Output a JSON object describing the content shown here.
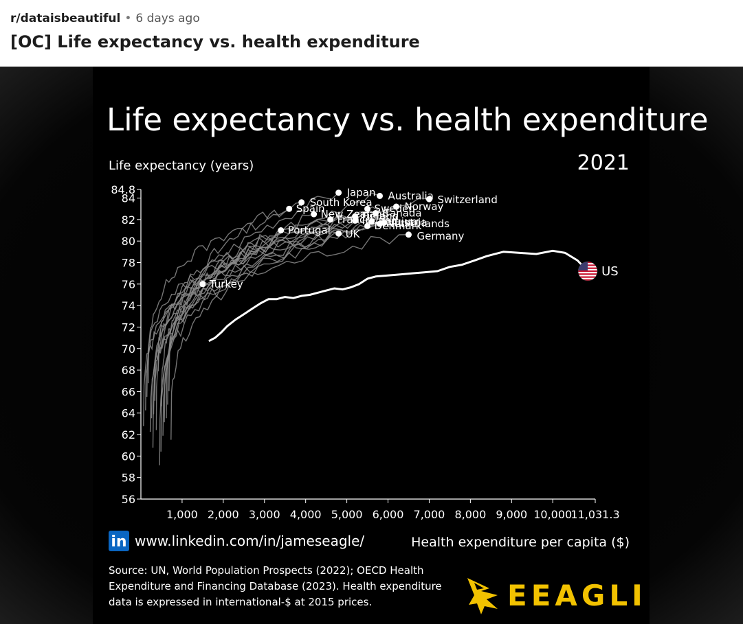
{
  "post": {
    "subreddit": "r/dataisbeautiful",
    "separator": "•",
    "time_ago": "6 days ago",
    "title": "[OC] Life expectancy vs. health expenditure"
  },
  "chart_data": {
    "type": "line",
    "title": "Life expectancy vs. health expenditure",
    "year": "2021",
    "ylabel": "Life expectancy (years)",
    "xlabel": "Health expenditure per capita ($)",
    "xlim": [
      0,
      11031.3
    ],
    "ylim": [
      56,
      84.8
    ],
    "x_ticks": [
      "1,000",
      "2,000",
      "3,000",
      "4,000",
      "5,000",
      "6,000",
      "7,000",
      "8,000",
      "9,000",
      "10,000",
      "11,031.3"
    ],
    "y_ticks": [
      "56",
      "58",
      "60",
      "62",
      "64",
      "66",
      "68",
      "70",
      "72",
      "74",
      "76",
      "78",
      "80",
      "82",
      "84",
      "84.8"
    ],
    "grid": false,
    "colors": {
      "background": "#000000",
      "highlight": "#ffffff",
      "others": "#8a8a8a",
      "logo": "#f2c200",
      "linkedin": "#0a66c2"
    },
    "highlight_series": {
      "name": "US",
      "x": [
        1650,
        1800,
        1950,
        2100,
        2300,
        2500,
        2700,
        2900,
        3100,
        3300,
        3500,
        3700,
        3900,
        4100,
        4300,
        4500,
        4700,
        4900,
        5100,
        5300,
        5500,
        5700,
        6000,
        6300,
        6600,
        6900,
        7200,
        7500,
        7800,
        8100,
        8400,
        8800,
        9200,
        9600,
        10000,
        10300,
        10600,
        10850
      ],
      "y": [
        70.7,
        71.0,
        71.5,
        72.1,
        72.7,
        73.2,
        73.7,
        74.2,
        74.6,
        74.6,
        74.8,
        74.7,
        74.9,
        75.0,
        75.2,
        75.4,
        75.6,
        75.5,
        75.7,
        76.0,
        76.5,
        76.7,
        76.8,
        76.9,
        77.0,
        77.1,
        77.2,
        77.6,
        77.8,
        78.2,
        78.6,
        79.0,
        78.9,
        78.8,
        79.1,
        78.9,
        78.2,
        77.2
      ],
      "end_point": {
        "x": 10850,
        "y": 77.2
      }
    },
    "countries": [
      {
        "name": "Japan",
        "x": 4800,
        "y": 84.5,
        "label_dx": 12,
        "label_dy": 5
      },
      {
        "name": "Australia",
        "x": 5800,
        "y": 84.2,
        "label_dx": 12,
        "label_dy": 5
      },
      {
        "name": "Switzerland",
        "x": 7000,
        "y": 83.9,
        "label_dx": 12,
        "label_dy": 6
      },
      {
        "name": "South Korea",
        "x": 3900,
        "y": 83.6,
        "label_dx": 12,
        "label_dy": 5
      },
      {
        "name": "Spain",
        "x": 3600,
        "y": 83.0,
        "label_dx": 10,
        "label_dy": 5
      },
      {
        "name": "Norway",
        "x": 6200,
        "y": 83.2,
        "label_dx": 12,
        "label_dy": 5
      },
      {
        "name": "Sweden",
        "x": 5500,
        "y": 83.0,
        "label_dx": 10,
        "label_dy": 5
      },
      {
        "name": "Canada",
        "x": 5700,
        "y": 82.6,
        "label_dx": 10,
        "label_dy": 5
      },
      {
        "name": "New Zealand",
        "x": 4200,
        "y": 82.5,
        "label_dx": 10,
        "label_dy": 5
      },
      {
        "name": "Finland",
        "x": 5200,
        "y": 82.3,
        "label_dx": 10,
        "label_dy": 5
      },
      {
        "name": "France",
        "x": 4600,
        "y": 82.0,
        "label_dx": 10,
        "label_dy": 5
      },
      {
        "name": "Ireland",
        "x": 5200,
        "y": 81.9,
        "label_dx": 10,
        "label_dy": 5
      },
      {
        "name": "Belgium",
        "x": 5600,
        "y": 81.8,
        "label_dx": 10,
        "label_dy": 5
      },
      {
        "name": "Austria",
        "x": 5900,
        "y": 81.7,
        "label_dx": 10,
        "label_dy": 5
      },
      {
        "name": "Netherlands",
        "x": 5800,
        "y": 81.6,
        "label_dx": 10,
        "label_dy": 5
      },
      {
        "name": "Denmark",
        "x": 5500,
        "y": 81.4,
        "label_dx": 10,
        "label_dy": 5
      },
      {
        "name": "Portugal",
        "x": 3400,
        "y": 81.0,
        "label_dx": 10,
        "label_dy": 5
      },
      {
        "name": "UK",
        "x": 4800,
        "y": 80.7,
        "label_dx": 10,
        "label_dy": 6
      },
      {
        "name": "Germany",
        "x": 6500,
        "y": 80.6,
        "label_dx": 12,
        "label_dy": 7
      },
      {
        "name": "Turkey",
        "x": 1500,
        "y": 76.0,
        "label_dx": 10,
        "label_dy": 5
      }
    ],
    "attribution": "www.linkedin.com/in/jameseagle/",
    "linkedin_icon": "in",
    "source_lines": [
      "Source: UN, World Population Prospects (2022); OECD Health",
      "Expenditure and Financing Database (2023). Health expenditure",
      "data is expressed in international-$ at 2015 prices."
    ],
    "logo_text": "EEAGLI"
  }
}
